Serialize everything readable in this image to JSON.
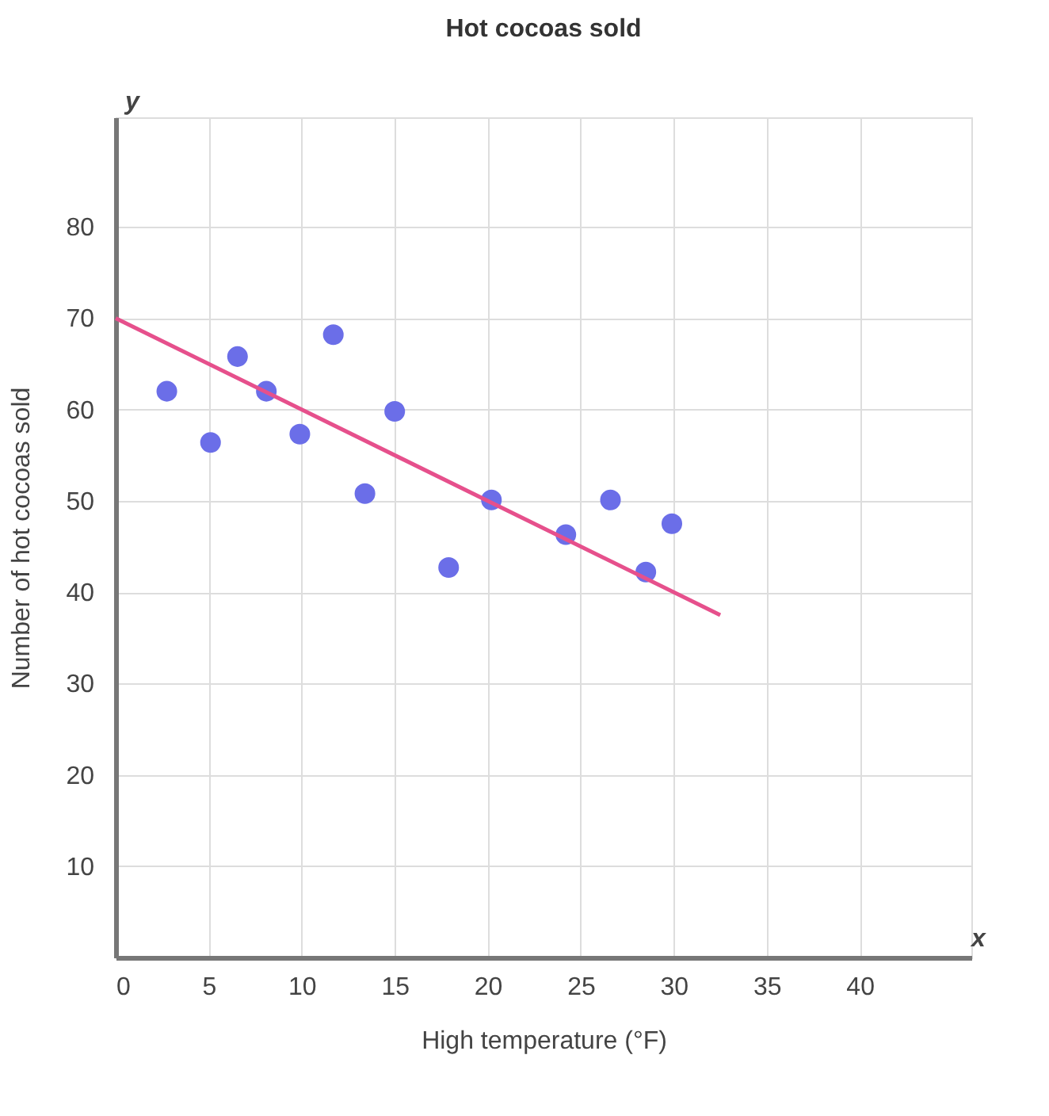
{
  "chart_data": {
    "type": "scatter",
    "title": "Hot cocoas sold",
    "xlabel": "High temperature (°F)",
    "ylabel": "Number of hot cocoas sold",
    "annotations": [
      "y",
      "x"
    ],
    "series": [
      {
        "color": "#6b6ee8",
        "x": [
          2.75,
          5.1,
          6.55,
          8.1,
          9.9,
          11.7,
          13.4,
          15,
          17.9,
          20.2,
          24.2,
          26.6,
          28.5,
          29.9
        ],
        "values": [
          62,
          56.4,
          65.8,
          62,
          57.3,
          68.2,
          50.8,
          59.8,
          42.7,
          50.1,
          46.3,
          50.1,
          42.2,
          47.5
        ]
      },
      {
        "type": "line",
        "marker": "none",
        "color": "#e6508c",
        "x": [
          0,
          32.5
        ],
        "values": [
          70,
          37.5
        ]
      }
    ],
    "xlim": [
      0,
      46
    ],
    "ylim": [
      0,
      92
    ],
    "xticks": [
      0,
      5,
      10,
      15,
      20,
      25,
      30,
      35,
      40
    ],
    "yticks": [
      {
        "value": 0,
        "label": null
      },
      10,
      20,
      30,
      40,
      50,
      60,
      70,
      80
    ],
    "grid": true,
    "marker": "circle"
  }
}
